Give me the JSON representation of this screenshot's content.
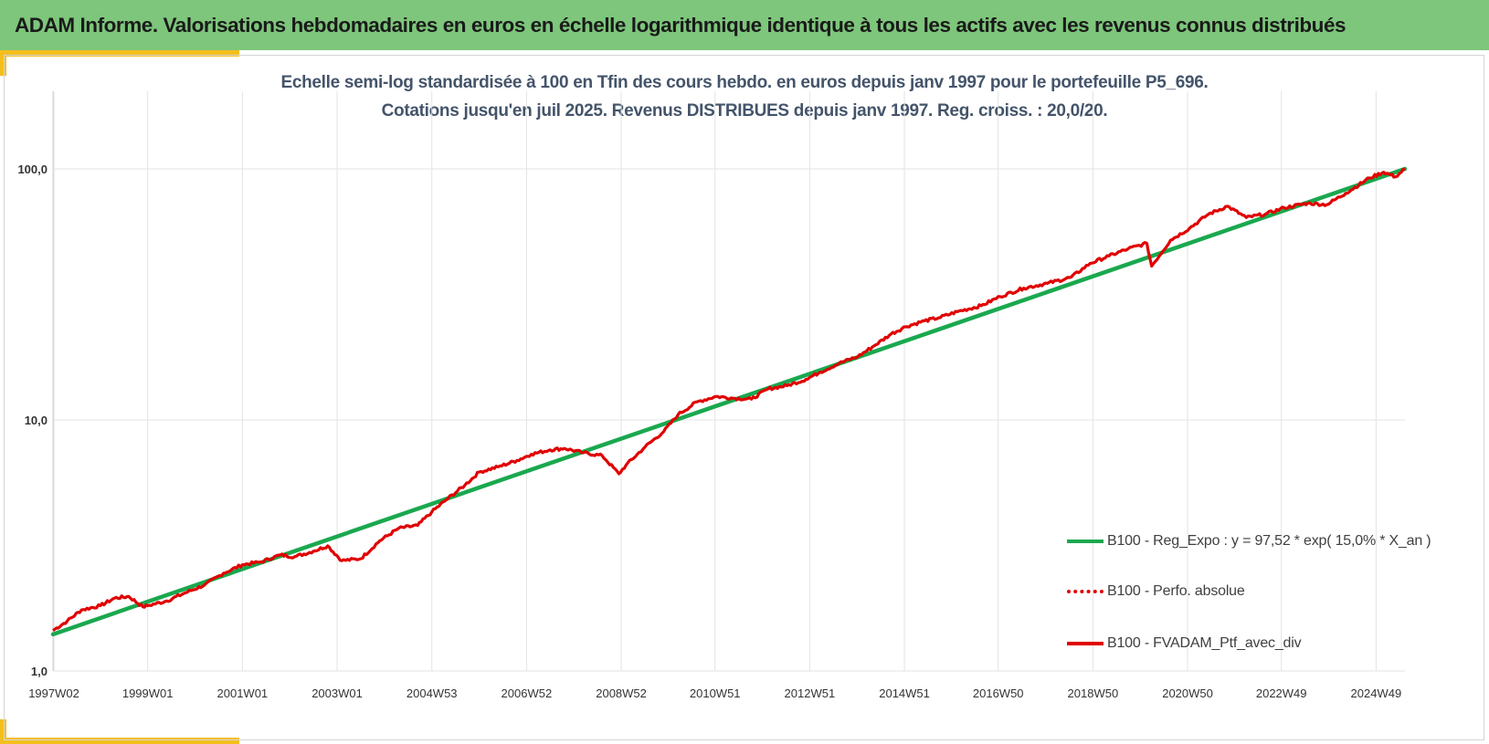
{
  "header": {
    "title": "ADAM Informe. Valorisations hebdomadaires en euros en échelle logarithmique identique à tous les actifs avec les revenus connus distribués"
  },
  "colors": {
    "header_bg": "#7dc67b",
    "accent": "#f4bf1d",
    "title_text": "#44546a",
    "regression": "#1aa84f",
    "portfolio": "#e00000",
    "perfo": "#e00000",
    "grid": "#e3e3e3"
  },
  "chart_data": {
    "type": "line",
    "title_line1": "Echelle semi-log standardisée  à 100 en Tfin des cours hebdo.  en euros depuis janv 1997 pour le portefeuille P5_696.",
    "title_line2": "Cotations jusqu'en juil 2025. Revenus DISTRIBUES depuis janv 1997. Reg. croiss. : 20,0/20.",
    "y_scale": "log",
    "ylim": [
      1,
      100
    ],
    "ytick_labels": [
      "1,0",
      "10,0",
      "100,0"
    ],
    "ytick_values": [
      1,
      10,
      100
    ],
    "xlim": [
      1997.0,
      2025.55
    ],
    "xtick_labels": [
      "1997W02",
      "1999W01",
      "2001W01",
      "2003W01",
      "2004W53",
      "2006W52",
      "2008W52",
      "2010W51",
      "2012W51",
      "2014W51",
      "2016W50",
      "2018W50",
      "2020W50",
      "2022W49",
      "2024W49"
    ],
    "xtick_values": [
      1997.02,
      1999.0,
      2001.0,
      2003.0,
      2005.0,
      2007.0,
      2009.0,
      2010.98,
      2012.98,
      2014.98,
      2016.96,
      2018.96,
      2020.96,
      2022.94,
      2024.94
    ],
    "grid": true,
    "legend_position": "bottom-right",
    "series": [
      {
        "name": "B100 - Reg_Expo : y = 97,52 * exp( 15,0% *  X_an )",
        "style": "solid-thick",
        "x": [
          1997.0,
          2025.55
        ],
        "y": [
          1.4,
          100.0
        ]
      },
      {
        "name": "B100 - Perfo. absolue",
        "style": "dotted",
        "x": [],
        "y": []
      },
      {
        "name": "B100 - FVADAM_Ptf_avec_div",
        "style": "solid",
        "x": [
          1997.0,
          1997.3,
          1997.6,
          1998.0,
          1998.3,
          1998.6,
          1998.9,
          1999.0,
          1999.4,
          1999.8,
          2000.2,
          2000.6,
          2001.0,
          2001.4,
          2001.8,
          2002.1,
          2002.5,
          2002.8,
          2003.1,
          2003.5,
          2003.9,
          2004.3,
          2004.7,
          2005.0,
          2005.3,
          2005.7,
          2006.0,
          2006.4,
          2006.8,
          2007.1,
          2007.5,
          2007.8,
          2008.2,
          2008.6,
          2008.95,
          2009.1,
          2009.5,
          2009.9,
          2010.2,
          2010.6,
          2011.0,
          2011.4,
          2011.75,
          2012.1,
          2012.5,
          2012.9,
          2013.2,
          2013.6,
          2014.0,
          2014.3,
          2014.7,
          2015.0,
          2015.4,
          2015.7,
          2016.1,
          2016.6,
          2017.0,
          2017.5,
          2018.0,
          2018.5,
          2018.9,
          2019.3,
          2019.7,
          2020.1,
          2020.2,
          2020.6,
          2021.0,
          2021.4,
          2021.8,
          2022.2,
          2022.6,
          2023.0,
          2023.5,
          2023.9,
          2024.3,
          2024.8,
          2025.1,
          2025.35,
          2025.55
        ],
        "y": [
          1.45,
          1.58,
          1.75,
          1.82,
          1.95,
          1.98,
          1.8,
          1.82,
          1.9,
          2.05,
          2.2,
          2.45,
          2.65,
          2.72,
          2.9,
          2.85,
          3.0,
          3.15,
          2.75,
          2.8,
          3.3,
          3.7,
          3.8,
          4.3,
          4.8,
          5.5,
          6.2,
          6.5,
          6.9,
          7.3,
          7.6,
          7.7,
          7.4,
          7.2,
          6.1,
          6.6,
          7.8,
          9.0,
          10.5,
          11.8,
          12.4,
          12.2,
          12.1,
          13.3,
          13.7,
          14.5,
          15.5,
          16.8,
          17.9,
          19.5,
          22.0,
          23.5,
          24.8,
          25.5,
          27.0,
          28.5,
          31.0,
          33.5,
          35.0,
          37.0,
          42.0,
          45.0,
          48.0,
          50.5,
          41.0,
          52.0,
          58.0,
          66.0,
          71.0,
          64.0,
          66.0,
          70.0,
          73.0,
          72.0,
          80.0,
          92.0,
          97.0,
          93.0,
          100.0
        ]
      }
    ]
  }
}
